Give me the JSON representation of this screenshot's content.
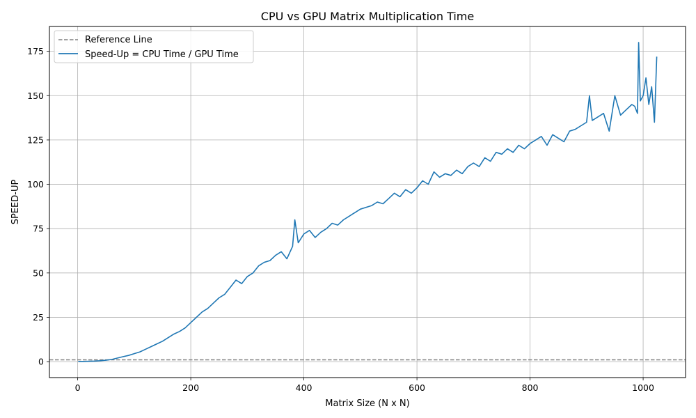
{
  "chart_data": {
    "type": "line",
    "title": "CPU vs GPU Matrix Multiplication Time",
    "xlabel": "Matrix Size (N x N)",
    "ylabel": "SPEED-UP",
    "xlim": [
      -50,
      1075
    ],
    "ylim": [
      -9,
      189
    ],
    "xticks": [
      0,
      200,
      400,
      600,
      800,
      1000
    ],
    "yticks": [
      0,
      25,
      50,
      75,
      100,
      125,
      150,
      175
    ],
    "grid": true,
    "legend_position": "top-left",
    "reference_line": {
      "name": "Reference Line",
      "y": 1,
      "color": "#808080",
      "style": "dashed"
    },
    "series": [
      {
        "name": "Speed-Up = CPU Time / GPU Time",
        "color": "#1f77b4",
        "x": [
          1,
          10,
          20,
          30,
          40,
          50,
          60,
          70,
          80,
          90,
          100,
          110,
          120,
          130,
          140,
          150,
          160,
          170,
          180,
          190,
          200,
          210,
          220,
          230,
          240,
          250,
          260,
          270,
          280,
          290,
          300,
          310,
          320,
          330,
          340,
          350,
          360,
          370,
          380,
          384,
          390,
          400,
          410,
          420,
          430,
          440,
          450,
          460,
          470,
          480,
          490,
          500,
          510,
          520,
          530,
          540,
          550,
          560,
          570,
          580,
          590,
          600,
          610,
          620,
          630,
          640,
          650,
          660,
          670,
          680,
          690,
          700,
          710,
          720,
          730,
          740,
          750,
          760,
          770,
          780,
          790,
          800,
          810,
          820,
          830,
          840,
          850,
          860,
          870,
          880,
          890,
          900,
          905,
          910,
          920,
          930,
          940,
          950,
          960,
          970,
          980,
          985,
          990,
          992,
          995,
          1000,
          1005,
          1010,
          1015,
          1020,
          1024
        ],
        "values": [
          0.1,
          0.1,
          0.2,
          0.3,
          0.5,
          0.8,
          1.2,
          2,
          2.8,
          3.5,
          4.5,
          5.5,
          7,
          8.5,
          10,
          11.5,
          13.5,
          15.5,
          17,
          19,
          22,
          25,
          28,
          30,
          33,
          36,
          38,
          42,
          46,
          44,
          48,
          50,
          54,
          56,
          57,
          60,
          62,
          58,
          65,
          80,
          67,
          72,
          74,
          70,
          73,
          75,
          78,
          77,
          80,
          82,
          84,
          86,
          87,
          88,
          90,
          89,
          92,
          95,
          93,
          97,
          95,
          98,
          102,
          100,
          107,
          104,
          106,
          105,
          108,
          106,
          110,
          112,
          110,
          115,
          113,
          118,
          117,
          120,
          118,
          122,
          120,
          123,
          125,
          127,
          122,
          128,
          126,
          124,
          130,
          131,
          133,
          135,
          150,
          136,
          138,
          140,
          130,
          150,
          139,
          142,
          145,
          144,
          140,
          180,
          147,
          150,
          160,
          145,
          155,
          135,
          172
        ]
      }
    ]
  }
}
